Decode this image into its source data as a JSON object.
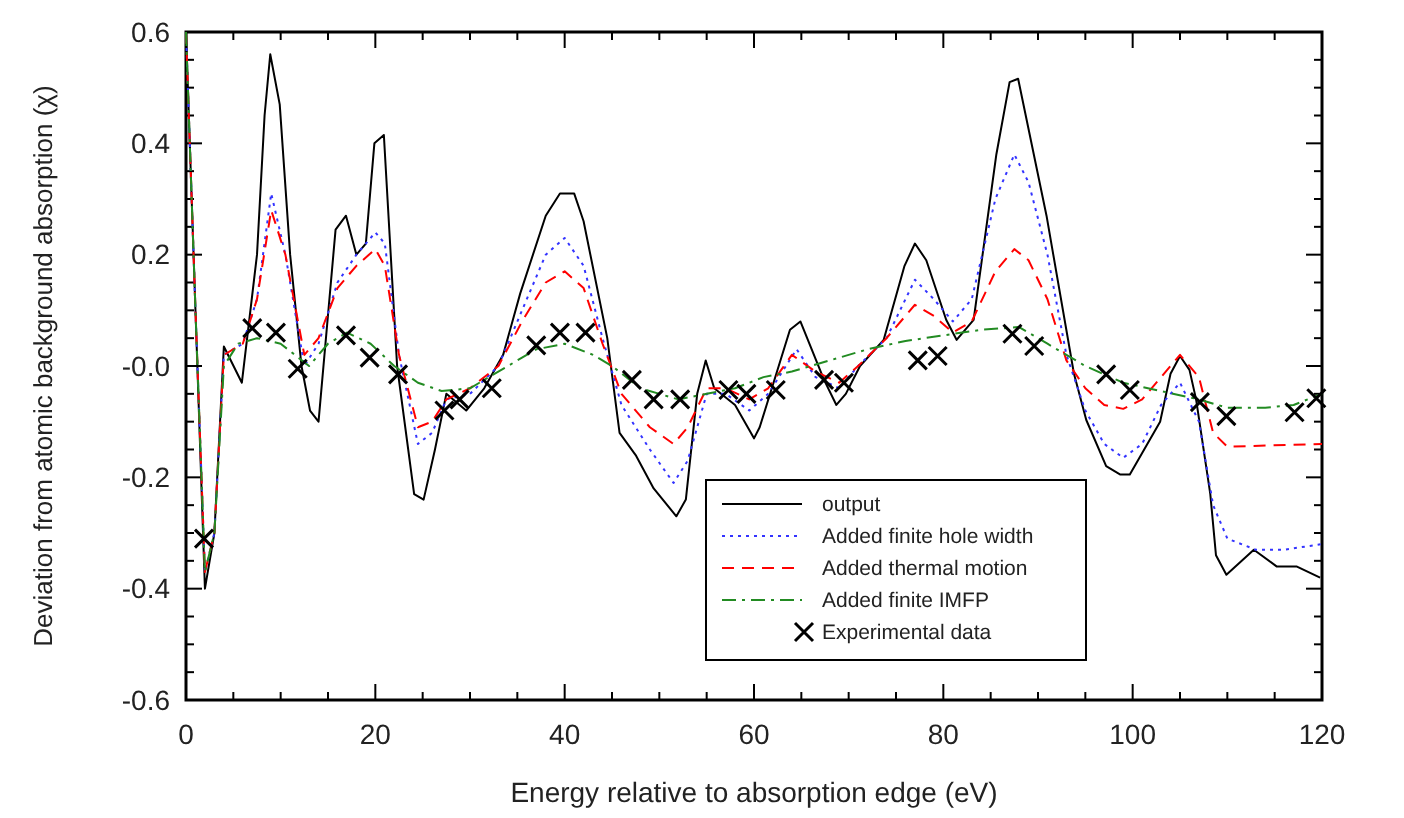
{
  "chart_data": {
    "type": "line",
    "xlabel": "Energy relative to absorption edge (eV)",
    "ylabel": "Deviation from atomic background absorption (χ)",
    "xlim": [
      0,
      120
    ],
    "ylim": [
      -0.6,
      0.6
    ],
    "xticks": [
      0,
      {
        "value": 5,
        "label": null
      },
      {
        "value": 10,
        "label": null
      },
      {
        "value": 15,
        "label": null
      },
      20,
      {
        "value": 25,
        "label": null
      },
      {
        "value": 30,
        "label": null
      },
      {
        "value": 35,
        "label": null
      },
      40,
      {
        "value": 45,
        "label": null
      },
      {
        "value": 50,
        "label": null
      },
      {
        "value": 55,
        "label": null
      },
      60,
      {
        "value": 65,
        "label": null
      },
      {
        "value": 70,
        "label": null
      },
      {
        "value": 75,
        "label": null
      },
      80,
      {
        "value": 85,
        "label": null
      },
      {
        "value": 90,
        "label": null
      },
      {
        "value": 95,
        "label": null
      },
      100,
      {
        "value": 105,
        "label": null
      },
      {
        "value": 110,
        "label": null
      },
      {
        "value": 115,
        "label": null
      },
      120
    ],
    "yticks": [
      {
        "value": -0.6,
        "label": "-0.6"
      },
      {
        "value": -0.55,
        "label": null
      },
      {
        "value": -0.5,
        "label": null
      },
      {
        "value": -0.45,
        "label": null
      },
      {
        "value": -0.4,
        "label": "-0.4"
      },
      {
        "value": -0.35,
        "label": null
      },
      {
        "value": -0.3,
        "label": null
      },
      {
        "value": -0.25,
        "label": null
      },
      {
        "value": -0.2,
        "label": "-0.2"
      },
      {
        "value": -0.15,
        "label": null
      },
      {
        "value": -0.1,
        "label": null
      },
      {
        "value": -0.05,
        "label": null
      },
      {
        "value": 0,
        "label": "-0.0"
      },
      {
        "value": 0.05,
        "label": null
      },
      {
        "value": 0.1,
        "label": null
      },
      {
        "value": 0.15,
        "label": null
      },
      {
        "value": 0.2,
        "label": "0.2"
      },
      {
        "value": 0.25,
        "label": null
      },
      {
        "value": 0.3,
        "label": null
      },
      {
        "value": 0.35,
        "label": null
      },
      {
        "value": 0.4,
        "label": "0.4"
      },
      {
        "value": 0.45,
        "label": null
      },
      {
        "value": 0.5,
        "label": null
      },
      {
        "value": 0.55,
        "label": null
      },
      {
        "value": 0.6,
        "label": "0.6"
      }
    ],
    "grid": false,
    "legend": "bottom right",
    "series": [
      {
        "name": "output",
        "color": "#000000",
        "line_style": "solid",
        "marker": "none",
        "x": [
          0,
          1,
          2,
          3,
          4,
          5.9,
          7.5,
          8.3,
          8.9,
          9.9,
          11,
          12.2,
          13.1,
          14,
          15.8,
          16.9,
          18,
          19,
          19.9,
          20.9,
          22.3,
          24.1,
          25.1,
          26.3,
          27.5,
          29.6,
          31.5,
          33.5,
          35.3,
          38,
          39.5,
          41,
          42,
          44.5,
          45.8,
          47.5,
          49.4,
          51.8,
          52.8,
          54,
          54.9,
          55.8,
          58,
          60,
          60.6,
          63.8,
          64.9,
          67.4,
          68.7,
          69.7,
          71.2,
          73.7,
          75.9,
          77,
          78.2,
          80.3,
          81.4,
          83.2,
          85.6,
          87,
          87.9,
          90.9,
          93.8,
          95.1,
          97.2,
          98.7,
          99.7,
          102.9,
          104,
          105,
          106,
          106.7,
          108.2,
          108.8,
          109.9,
          112.8,
          115.2,
          117.3,
          119.8
        ],
        "values": [
          0.6,
          0.1,
          -0.4,
          -0.3,
          0.035,
          -0.03,
          0.2,
          0.45,
          0.56,
          0.47,
          0.2,
          0.0,
          -0.08,
          -0.1,
          0.245,
          0.27,
          0.2,
          0.22,
          0.4,
          0.415,
          0.0,
          -0.23,
          -0.24,
          -0.15,
          -0.05,
          -0.08,
          -0.04,
          0.02,
          0.13,
          0.27,
          0.31,
          0.31,
          0.26,
          0.05,
          -0.12,
          -0.16,
          -0.22,
          -0.27,
          -0.24,
          -0.05,
          0.01,
          -0.04,
          -0.07,
          -0.13,
          -0.11,
          0.065,
          0.08,
          -0.025,
          -0.07,
          -0.05,
          0,
          0.047,
          0.18,
          0.22,
          0.19,
          0.083,
          0.047,
          0.083,
          0.38,
          0.51,
          0.516,
          0.27,
          -0.014,
          -0.097,
          -0.18,
          -0.195,
          -0.195,
          -0.1,
          -0.014,
          0.018,
          -0.007,
          -0.06,
          -0.23,
          -0.34,
          -0.375,
          -0.33,
          -0.36,
          -0.36,
          -0.38
        ]
      },
      {
        "name": "Added finite hole width",
        "color": "#3333ff",
        "line_style": "dotted",
        "marker": "none",
        "x": [
          0,
          1,
          2,
          3,
          4,
          6,
          7.5,
          9,
          10.5,
          12.5,
          14,
          16,
          18,
          20,
          21,
          22.5,
          24.5,
          26,
          27.5,
          30,
          33,
          35.5,
          38,
          40,
          42,
          44,
          46,
          49,
          51.5,
          53,
          55,
          57,
          59.5,
          61.5,
          64.5,
          66.5,
          69,
          71,
          74,
          77,
          79,
          81,
          83,
          85.5,
          87.5,
          89,
          91,
          93,
          95,
          97,
          99,
          101,
          103,
          105,
          107,
          108.5,
          110,
          113,
          116,
          120
        ],
        "values": [
          0.6,
          0.1,
          -0.37,
          -0.3,
          0.02,
          0.04,
          0.12,
          0.31,
          0.2,
          0.0,
          0.04,
          0.15,
          0.2,
          0.24,
          0.22,
          0.02,
          -0.14,
          -0.12,
          -0.06,
          -0.05,
          0.0,
          0.1,
          0.2,
          0.23,
          0.18,
          0.05,
          -0.07,
          -0.15,
          -0.21,
          -0.17,
          -0.05,
          -0.05,
          -0.08,
          -0.05,
          0.03,
          -0.02,
          -0.04,
          0.0,
          0.05,
          0.155,
          0.12,
          0.08,
          0.12,
          0.3,
          0.38,
          0.33,
          0.2,
          0.02,
          -0.08,
          -0.14,
          -0.165,
          -0.14,
          -0.07,
          -0.03,
          -0.1,
          -0.25,
          -0.31,
          -0.33,
          -0.33,
          -0.32
        ]
      },
      {
        "name": "Added thermal motion",
        "color": "#ff0000",
        "line_style": "dashed",
        "marker": "none",
        "x": [
          0,
          1,
          2,
          3,
          4,
          6,
          7.5,
          9,
          10.5,
          12.5,
          14,
          16,
          18,
          20,
          21,
          22.5,
          24.5,
          26,
          27.5,
          30,
          33,
          35.5,
          38,
          40,
          42,
          44,
          46,
          49,
          51.5,
          53,
          55,
          57,
          59.5,
          61.5,
          64,
          66.5,
          69,
          71,
          74,
          77,
          79,
          81,
          83,
          85.5,
          87.5,
          89,
          91,
          93,
          95,
          97,
          99,
          101,
          103,
          105,
          107,
          108.5,
          110,
          120
        ],
        "values": [
          0.6,
          0.1,
          -0.37,
          -0.3,
          0.02,
          0.04,
          0.12,
          0.28,
          0.2,
          0.02,
          0.05,
          0.14,
          0.18,
          0.21,
          0.18,
          0.02,
          -0.11,
          -0.1,
          -0.06,
          -0.04,
          0.0,
          0.08,
          0.15,
          0.17,
          0.14,
          0.04,
          -0.05,
          -0.11,
          -0.14,
          -0.11,
          -0.04,
          -0.04,
          -0.06,
          -0.04,
          0.02,
          -0.01,
          -0.03,
          0.0,
          0.05,
          0.11,
          0.09,
          0.06,
          0.08,
          0.17,
          0.21,
          0.19,
          0.12,
          0.01,
          -0.04,
          -0.07,
          -0.077,
          -0.06,
          -0.02,
          0.02,
          -0.02,
          -0.12,
          -0.145,
          -0.14
        ]
      },
      {
        "name": "Added finite IMFP",
        "color": "#228b22",
        "line_style": "dashdot",
        "marker": "none",
        "x": [
          0,
          1,
          2,
          3,
          4,
          5.5,
          7.5,
          10,
          13,
          15,
          17,
          19.5,
          22,
          24.5,
          27,
          30,
          34,
          37,
          40,
          43,
          45,
          48,
          52,
          55,
          58,
          61,
          64,
          68,
          72,
          76,
          80,
          84,
          88,
          91,
          95,
          99,
          103,
          107,
          110,
          114,
          117,
          120
        ],
        "values": [
          0.6,
          0.1,
          -0.37,
          -0.3,
          0.0,
          0.04,
          0.05,
          0.04,
          0.0,
          0.04,
          0.06,
          0.04,
          0.0,
          -0.03,
          -0.045,
          -0.04,
          0.0,
          0.03,
          0.04,
          0.02,
          0.0,
          -0.04,
          -0.06,
          -0.05,
          -0.04,
          -0.02,
          -0.01,
          0.01,
          0.03,
          0.045,
          0.055,
          0.065,
          0.07,
          0.04,
          0.0,
          -0.03,
          -0.045,
          -0.06,
          -0.075,
          -0.075,
          -0.07,
          -0.05
        ]
      },
      {
        "name": "Experimental data",
        "type": "scatter",
        "color": "#000000",
        "marker": "cross",
        "x": [
          1.9,
          7,
          9.5,
          11.8,
          16.9,
          19.4,
          22.4,
          27.3,
          28.9,
          32.3,
          37,
          39.5,
          42.2,
          47.1,
          49.4,
          52.2,
          57.3,
          59.2,
          62.3,
          67.4,
          69.5,
          77.3,
          79.4,
          87.3,
          89.6,
          97.2,
          99.7,
          107.1,
          109.9,
          117.1,
          119.4
        ],
        "values": [
          -0.31,
          0.068,
          0.06,
          -0.005,
          0.055,
          0.015,
          -0.015,
          -0.08,
          -0.06,
          -0.04,
          0.037,
          0.06,
          0.06,
          -0.025,
          -0.06,
          -0.06,
          -0.043,
          -0.05,
          -0.043,
          -0.025,
          -0.03,
          0.01,
          0.018,
          0.058,
          0.036,
          -0.015,
          -0.043,
          -0.065,
          -0.09,
          -0.083,
          -0.058
        ]
      }
    ]
  }
}
